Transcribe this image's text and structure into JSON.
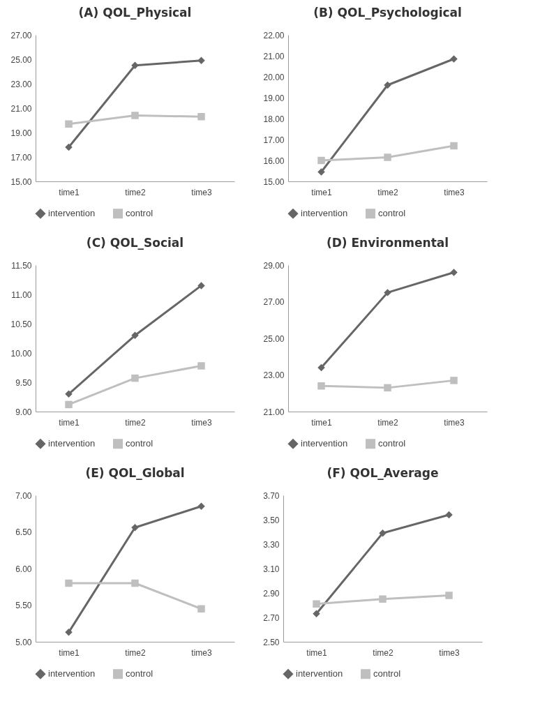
{
  "chart_data": [
    {
      "type": "line",
      "title": "(A) QOL_Physical",
      "categories": [
        "time1",
        "time2",
        "time3"
      ],
      "series": [
        {
          "name": "intervention",
          "color": "#666666",
          "marker": "diamond",
          "values": [
            17.8,
            24.5,
            24.9
          ]
        },
        {
          "name": "control",
          "color": "#bfbfbf",
          "marker": "square",
          "values": [
            19.7,
            20.4,
            20.3
          ]
        }
      ],
      "ylim": [
        15,
        27
      ],
      "yticks": [
        {
          "value": 15,
          "label": "15.00"
        },
        {
          "value": 17,
          "label": "17.00"
        },
        {
          "value": 19,
          "label": "19.00"
        },
        {
          "value": 21,
          "label": "21.00"
        },
        {
          "value": 23,
          "label": "23.00"
        },
        {
          "value": 25,
          "label": "25.00"
        },
        {
          "value": 27,
          "label": "27.00"
        }
      ],
      "legend": "bottom"
    },
    {
      "type": "line",
      "title": "(B) QOL_Psychological",
      "categories": [
        "time1",
        "time2",
        "time3"
      ],
      "series": [
        {
          "name": "intervention",
          "color": "#666666",
          "marker": "diamond",
          "values": [
            15.45,
            19.6,
            20.85
          ]
        },
        {
          "name": "control",
          "color": "#bfbfbf",
          "marker": "square",
          "values": [
            16.0,
            16.15,
            16.7
          ]
        }
      ],
      "ylim": [
        15,
        22
      ],
      "yticks": [
        {
          "value": 15,
          "label": "15.00"
        },
        {
          "value": 16,
          "label": "16.00"
        },
        {
          "value": 17,
          "label": "17.00"
        },
        {
          "value": 18,
          "label": "18.00"
        },
        {
          "value": 19,
          "label": "19.00"
        },
        {
          "value": 20,
          "label": "20.00"
        },
        {
          "value": 21,
          "label": "21.00"
        },
        {
          "value": 22,
          "label": "22.00"
        }
      ],
      "legend": "bottom"
    },
    {
      "type": "line",
      "title": "(C) QOL_Social",
      "categories": [
        "time1",
        "time2",
        "time3"
      ],
      "series": [
        {
          "name": "intervention",
          "color": "#666666",
          "marker": "diamond",
          "values": [
            9.3,
            10.3,
            11.15
          ]
        },
        {
          "name": "control",
          "color": "#bfbfbf",
          "marker": "square",
          "values": [
            9.12,
            9.57,
            9.78
          ]
        }
      ],
      "ylim": [
        9,
        11.5
      ],
      "yticks": [
        {
          "value": 9,
          "label": "9.00"
        },
        {
          "value": 9.5,
          "label": "9.50"
        },
        {
          "value": 10,
          "label": "10.00"
        },
        {
          "value": 10.5,
          "label": "10.50"
        },
        {
          "value": 11,
          "label": "11.00"
        },
        {
          "value": 11.5,
          "label": "11.50"
        }
      ],
      "legend": "bottom"
    },
    {
      "type": "line",
      "title": "(D) Environmental",
      "categories": [
        "time1",
        "time2",
        "time3"
      ],
      "series": [
        {
          "name": "intervention",
          "color": "#666666",
          "marker": "diamond",
          "values": [
            23.4,
            27.5,
            28.6
          ]
        },
        {
          "name": "control",
          "color": "#bfbfbf",
          "marker": "square",
          "values": [
            22.4,
            22.3,
            22.7
          ]
        }
      ],
      "ylim": [
        21,
        29
      ],
      "yticks": [
        {
          "value": 21,
          "label": "21.00"
        },
        {
          "value": 23,
          "label": "23.00"
        },
        {
          "value": 25,
          "label": "25.00"
        },
        {
          "value": 27,
          "label": "27.00"
        },
        {
          "value": 29,
          "label": "29.00"
        }
      ],
      "legend": "bottom"
    },
    {
      "type": "line",
      "title": "(E) QOL_Global",
      "categories": [
        "time1",
        "time2",
        "time3"
      ],
      "series": [
        {
          "name": "intervention",
          "color": "#666666",
          "marker": "diamond",
          "values": [
            5.13,
            6.56,
            6.85
          ]
        },
        {
          "name": "control",
          "color": "#bfbfbf",
          "marker": "square",
          "values": [
            5.8,
            5.8,
            5.45
          ]
        }
      ],
      "ylim": [
        5,
        7
      ],
      "yticks": [
        {
          "value": 5,
          "label": "5.00"
        },
        {
          "value": 5.5,
          "label": "5.50"
        },
        {
          "value": 6,
          "label": "6.00"
        },
        {
          "value": 6.5,
          "label": "6.50"
        },
        {
          "value": 7,
          "label": "7.00"
        }
      ],
      "legend": "bottom"
    },
    {
      "type": "line",
      "title": "(F) QOL_Average",
      "categories": [
        "time1",
        "time2",
        "time3"
      ],
      "series": [
        {
          "name": "intervention",
          "color": "#666666",
          "marker": "diamond",
          "values": [
            2.73,
            3.39,
            3.54
          ]
        },
        {
          "name": "control",
          "color": "#bfbfbf",
          "marker": "square",
          "values": [
            2.81,
            2.85,
            2.88
          ]
        }
      ],
      "ylim": [
        2.5,
        3.7
      ],
      "yticks": [
        {
          "value": 2.5,
          "label": "2.50"
        },
        {
          "value": 2.7,
          "label": "2.70"
        },
        {
          "value": 2.9,
          "label": "2.90"
        },
        {
          "value": 3.1,
          "label": "3.10"
        },
        {
          "value": 3.3,
          "label": "3.30"
        },
        {
          "value": 3.5,
          "label": "3.50"
        },
        {
          "value": 3.7,
          "label": "3.70"
        }
      ],
      "legend": "bottom"
    }
  ]
}
